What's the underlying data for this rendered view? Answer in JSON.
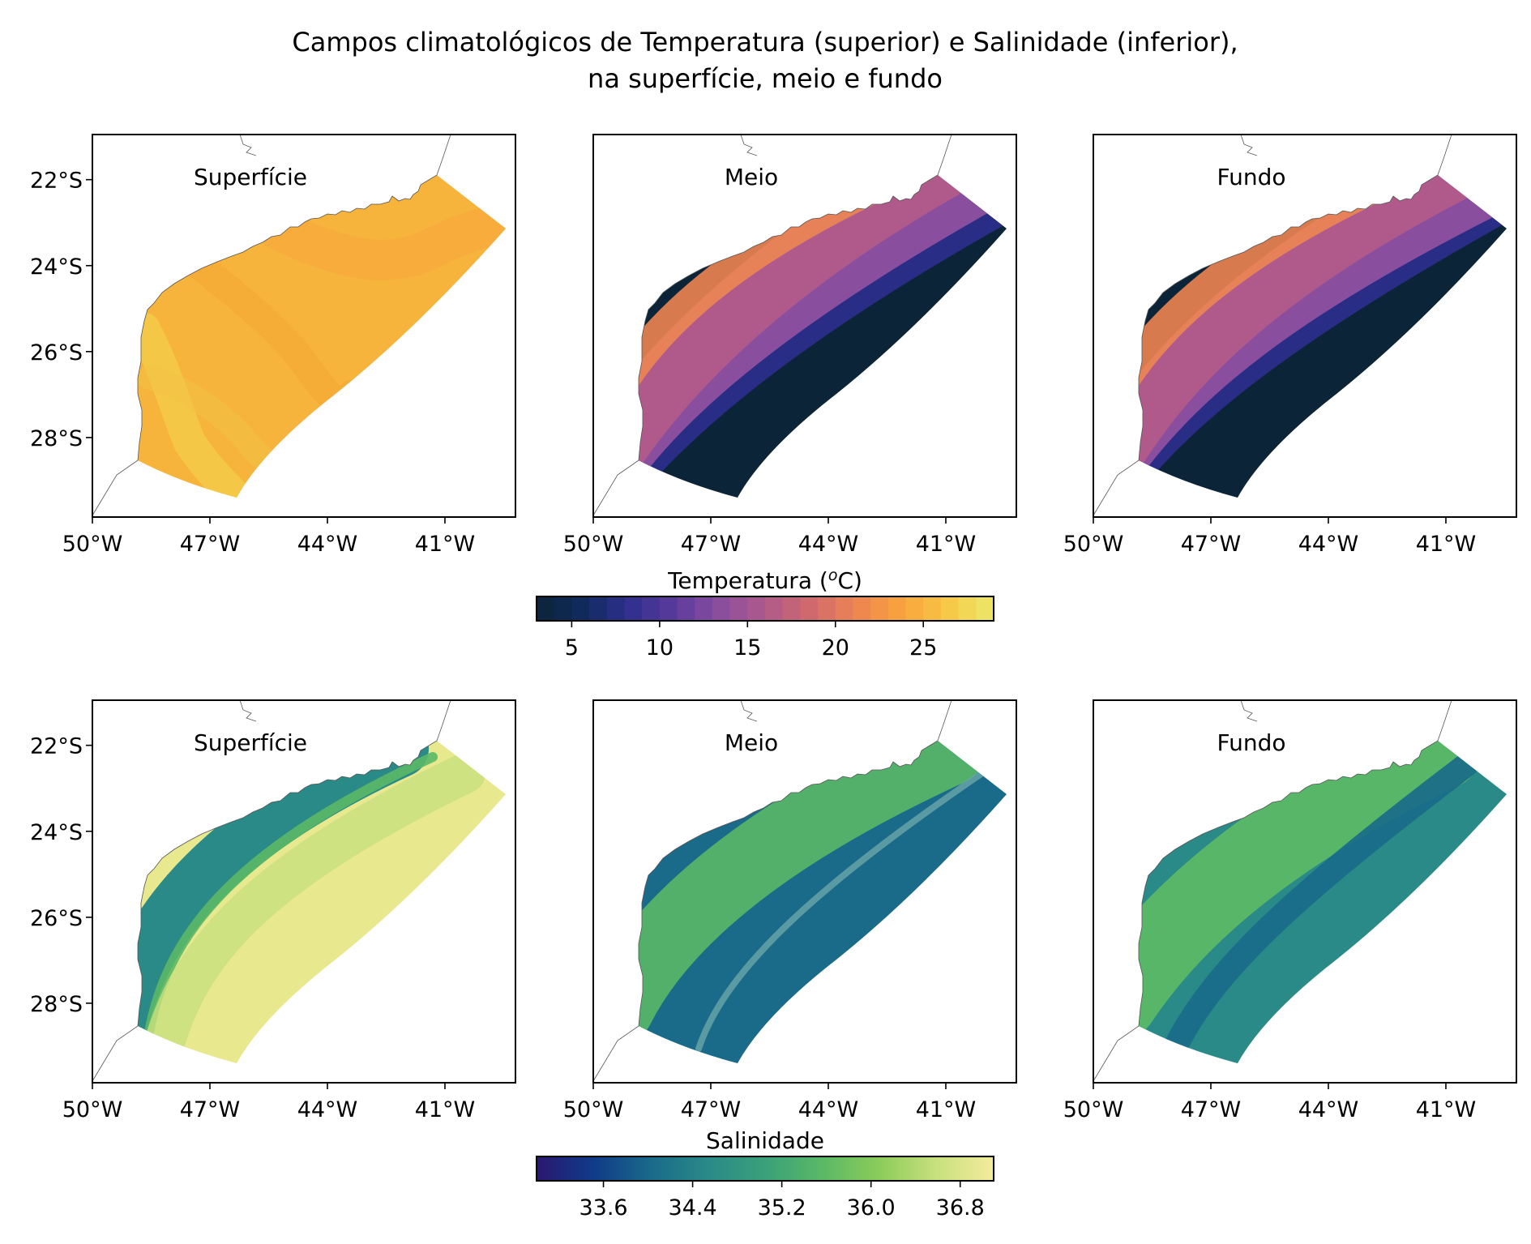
{
  "title_lines": [
    "Campos climatológicos de Temperatura (superior) e Salinidade (inferior),",
    "na superfície, meio e fundo"
  ],
  "chart_data": {
    "type": "heatmap",
    "lon_ticks": [
      "50°W",
      "47°W",
      "44°W",
      "41°W"
    ],
    "lat_ticks": [
      "22°S",
      "24°S",
      "26°S",
      "28°S"
    ],
    "rows": [
      {
        "variable": "Temperatura",
        "panels": [
          {
            "label": "Superfície",
            "field": "temp_sup"
          },
          {
            "label": "Meio",
            "field": "temp_meio"
          },
          {
            "label": "Fundo",
            "field": "temp_fundo"
          }
        ],
        "colorbar": {
          "label_prefix": "Temperatura (",
          "label_sup": "o",
          "label_suffix": "C)",
          "range": [
            3,
            29
          ],
          "ticks": [
            "5",
            "10",
            "15",
            "20",
            "25"
          ],
          "tick_values": [
            5,
            10,
            15,
            20,
            25
          ],
          "n_bins": 26,
          "colors": [
            "#0c2438",
            "#102a5c",
            "#2e2f8e",
            "#5a3a9c",
            "#8a4e9e",
            "#b05a8c",
            "#d06a6c",
            "#ed8552",
            "#f8a33c",
            "#f7c848",
            "#ebe86a"
          ]
        }
      },
      {
        "variable": "Salinidade",
        "panels": [
          {
            "label": "Superfície",
            "field": "sal_sup"
          },
          {
            "label": "Meio",
            "field": "sal_meio"
          },
          {
            "label": "Fundo",
            "field": "sal_fundo"
          }
        ],
        "colorbar": {
          "label": "Salinidade",
          "range": [
            33.0,
            37.1
          ],
          "ticks": [
            "33.6",
            "34.4",
            "35.2",
            "36.0",
            "36.8"
          ],
          "tick_values": [
            33.6,
            34.4,
            35.2,
            36.0,
            36.8
          ],
          "colors": [
            "#2a1870",
            "#103b88",
            "#1a6a8a",
            "#2a8a88",
            "#3aa07a",
            "#5ab866",
            "#8ccc5a",
            "#c8e07e",
            "#f3eb9c"
          ]
        }
      }
    ]
  }
}
